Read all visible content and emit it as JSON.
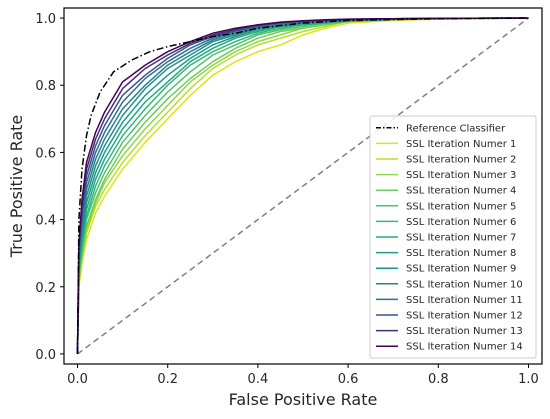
{
  "chart_data": {
    "type": "line",
    "title": "",
    "xlabel": "False Positive Rate",
    "ylabel": "True Positive Rate",
    "xlim": [
      -0.03,
      1.03
    ],
    "ylim": [
      -0.03,
      1.03
    ],
    "xticks": [
      "0.0",
      "0.2",
      "0.4",
      "0.6",
      "0.8",
      "1.0"
    ],
    "yticks": [
      "0.0",
      "0.2",
      "0.4",
      "0.6",
      "0.8",
      "1.0"
    ],
    "grid": false,
    "legend_position": "lower-right",
    "diagonal": {
      "x": [
        0,
        1
      ],
      "y": [
        0,
        1
      ],
      "color": "#808080",
      "style": "dashed"
    },
    "series": [
      {
        "name": "Reference Classifier",
        "color": "#000000",
        "style": "dashdot",
        "x": [
          0,
          0.003,
          0.01,
          0.02,
          0.03,
          0.05,
          0.08,
          0.12,
          0.16,
          0.2,
          0.25,
          0.3,
          0.35,
          0.4,
          0.5,
          0.6,
          0.8,
          1.0
        ],
        "y": [
          0,
          0.4,
          0.55,
          0.65,
          0.71,
          0.78,
          0.84,
          0.875,
          0.9,
          0.915,
          0.93,
          0.945,
          0.955,
          0.97,
          0.985,
          0.993,
          0.998,
          1.0
        ]
      },
      {
        "name": "SSL Iteration Numer 1",
        "color": "#dfe318",
        "style": "solid",
        "x": [
          0,
          0.003,
          0.01,
          0.02,
          0.04,
          0.06,
          0.1,
          0.15,
          0.2,
          0.25,
          0.3,
          0.35,
          0.4,
          0.45,
          0.5,
          0.55,
          0.6,
          0.7,
          0.8,
          1.0
        ],
        "y": [
          0,
          0.2,
          0.27,
          0.34,
          0.42,
          0.47,
          0.55,
          0.63,
          0.7,
          0.77,
          0.83,
          0.87,
          0.9,
          0.92,
          0.95,
          0.97,
          0.985,
          0.993,
          0.997,
          1.0
        ]
      },
      {
        "name": "SSL Iteration Numer 2",
        "color": "#b5de2b",
        "style": "solid",
        "x": [
          0,
          0.003,
          0.01,
          0.02,
          0.04,
          0.06,
          0.1,
          0.15,
          0.2,
          0.25,
          0.3,
          0.35,
          0.4,
          0.45,
          0.5,
          0.55,
          0.6,
          0.7,
          0.8,
          1.0
        ],
        "y": [
          0,
          0.21,
          0.28,
          0.36,
          0.44,
          0.49,
          0.57,
          0.65,
          0.72,
          0.79,
          0.85,
          0.89,
          0.92,
          0.94,
          0.96,
          0.975,
          0.99,
          0.995,
          0.998,
          1.0
        ]
      },
      {
        "name": "SSL Iteration Numer 3",
        "color": "#8fd744",
        "style": "solid",
        "x": [
          0,
          0.003,
          0.01,
          0.02,
          0.04,
          0.06,
          0.1,
          0.15,
          0.2,
          0.25,
          0.3,
          0.35,
          0.4,
          0.45,
          0.5,
          0.55,
          0.6,
          0.7,
          0.8,
          1.0
        ],
        "y": [
          0,
          0.22,
          0.29,
          0.37,
          0.45,
          0.51,
          0.59,
          0.67,
          0.74,
          0.81,
          0.86,
          0.9,
          0.93,
          0.95,
          0.97,
          0.98,
          0.99,
          0.995,
          0.998,
          1.0
        ]
      },
      {
        "name": "SSL Iteration Numer 4",
        "color": "#6ccd5a",
        "style": "solid",
        "x": [
          0,
          0.003,
          0.01,
          0.02,
          0.04,
          0.06,
          0.1,
          0.15,
          0.2,
          0.25,
          0.3,
          0.35,
          0.4,
          0.45,
          0.5,
          0.55,
          0.6,
          0.7,
          0.8,
          1.0
        ],
        "y": [
          0,
          0.23,
          0.3,
          0.38,
          0.46,
          0.52,
          0.61,
          0.69,
          0.76,
          0.82,
          0.87,
          0.91,
          0.94,
          0.96,
          0.97,
          0.98,
          0.99,
          0.996,
          0.999,
          1.0
        ]
      },
      {
        "name": "SSL Iteration Numer 5",
        "color": "#4ec36b",
        "style": "solid",
        "x": [
          0,
          0.003,
          0.01,
          0.02,
          0.04,
          0.06,
          0.1,
          0.15,
          0.2,
          0.25,
          0.3,
          0.35,
          0.4,
          0.45,
          0.5,
          0.55,
          0.6,
          0.7,
          0.8,
          1.0
        ],
        "y": [
          0,
          0.24,
          0.31,
          0.4,
          0.48,
          0.54,
          0.63,
          0.71,
          0.78,
          0.84,
          0.89,
          0.92,
          0.95,
          0.965,
          0.975,
          0.985,
          0.99,
          0.996,
          0.999,
          1.0
        ]
      },
      {
        "name": "SSL Iteration Numer 6",
        "color": "#35b779",
        "style": "solid",
        "x": [
          0,
          0.003,
          0.01,
          0.02,
          0.04,
          0.06,
          0.1,
          0.15,
          0.2,
          0.25,
          0.3,
          0.35,
          0.4,
          0.45,
          0.5,
          0.55,
          0.6,
          0.7,
          0.8,
          1.0
        ],
        "y": [
          0,
          0.25,
          0.32,
          0.41,
          0.5,
          0.56,
          0.65,
          0.73,
          0.8,
          0.86,
          0.9,
          0.93,
          0.955,
          0.97,
          0.98,
          0.985,
          0.99,
          0.996,
          0.999,
          1.0
        ]
      },
      {
        "name": "SSL Iteration Numer 7",
        "color": "#22a884",
        "style": "solid",
        "x": [
          0,
          0.003,
          0.01,
          0.02,
          0.04,
          0.06,
          0.1,
          0.15,
          0.2,
          0.25,
          0.3,
          0.35,
          0.4,
          0.45,
          0.5,
          0.55,
          0.6,
          0.7,
          0.8,
          1.0
        ],
        "y": [
          0,
          0.26,
          0.34,
          0.43,
          0.52,
          0.58,
          0.67,
          0.75,
          0.81,
          0.87,
          0.91,
          0.94,
          0.96,
          0.975,
          0.98,
          0.987,
          0.992,
          0.997,
          0.999,
          1.0
        ]
      },
      {
        "name": "SSL Iteration Numer 8",
        "color": "#1f9a8a",
        "style": "solid",
        "x": [
          0,
          0.003,
          0.01,
          0.02,
          0.04,
          0.06,
          0.1,
          0.15,
          0.2,
          0.25,
          0.3,
          0.35,
          0.4,
          0.45,
          0.5,
          0.55,
          0.6,
          0.7,
          0.8,
          1.0
        ],
        "y": [
          0,
          0.27,
          0.35,
          0.45,
          0.54,
          0.6,
          0.69,
          0.77,
          0.83,
          0.88,
          0.92,
          0.945,
          0.965,
          0.978,
          0.985,
          0.99,
          0.993,
          0.997,
          0.999,
          1.0
        ]
      },
      {
        "name": "SSL Iteration Numer 9",
        "color": "#21918c",
        "style": "solid",
        "x": [
          0,
          0.003,
          0.01,
          0.02,
          0.04,
          0.06,
          0.1,
          0.15,
          0.2,
          0.25,
          0.3,
          0.35,
          0.4,
          0.45,
          0.5,
          0.55,
          0.6,
          0.7,
          0.8,
          1.0
        ],
        "y": [
          0,
          0.28,
          0.37,
          0.47,
          0.56,
          0.62,
          0.71,
          0.79,
          0.85,
          0.89,
          0.93,
          0.95,
          0.97,
          0.98,
          0.986,
          0.99,
          0.994,
          0.997,
          0.999,
          1.0
        ]
      },
      {
        "name": "SSL Iteration Numer 10",
        "color": "#26828e",
        "style": "solid",
        "x": [
          0,
          0.003,
          0.01,
          0.02,
          0.04,
          0.06,
          0.1,
          0.15,
          0.2,
          0.25,
          0.3,
          0.35,
          0.4,
          0.45,
          0.5,
          0.55,
          0.6,
          0.7,
          0.8,
          1.0
        ],
        "y": [
          0,
          0.29,
          0.38,
          0.49,
          0.58,
          0.64,
          0.73,
          0.8,
          0.86,
          0.9,
          0.935,
          0.955,
          0.972,
          0.982,
          0.988,
          0.992,
          0.995,
          0.998,
          0.999,
          1.0
        ]
      },
      {
        "name": "SSL Iteration Numer 11",
        "color": "#2c728e",
        "style": "solid",
        "x": [
          0,
          0.003,
          0.01,
          0.02,
          0.04,
          0.06,
          0.1,
          0.15,
          0.2,
          0.25,
          0.3,
          0.35,
          0.4,
          0.45,
          0.5,
          0.55,
          0.6,
          0.7,
          0.8,
          1.0
        ],
        "y": [
          0,
          0.3,
          0.4,
          0.51,
          0.6,
          0.66,
          0.75,
          0.82,
          0.87,
          0.91,
          0.94,
          0.96,
          0.975,
          0.984,
          0.99,
          0.993,
          0.995,
          0.998,
          0.999,
          1.0
        ]
      },
      {
        "name": "SSL Iteration Numer 12",
        "color": "#3b528b",
        "style": "solid",
        "x": [
          0,
          0.003,
          0.01,
          0.02,
          0.04,
          0.06,
          0.1,
          0.15,
          0.2,
          0.25,
          0.3,
          0.35,
          0.4,
          0.45,
          0.5,
          0.55,
          0.6,
          0.7,
          0.8,
          1.0
        ],
        "y": [
          0,
          0.31,
          0.42,
          0.53,
          0.62,
          0.68,
          0.77,
          0.83,
          0.88,
          0.92,
          0.945,
          0.963,
          0.977,
          0.986,
          0.99,
          0.994,
          0.996,
          0.998,
          0.999,
          1.0
        ]
      },
      {
        "name": "SSL Iteration Numer 13",
        "color": "#472d7b",
        "style": "solid",
        "x": [
          0,
          0.003,
          0.01,
          0.02,
          0.04,
          0.06,
          0.1,
          0.15,
          0.2,
          0.25,
          0.3,
          0.35,
          0.4,
          0.45,
          0.5,
          0.55,
          0.6,
          0.7,
          0.8,
          1.0
        ],
        "y": [
          0,
          0.32,
          0.44,
          0.55,
          0.64,
          0.7,
          0.79,
          0.85,
          0.89,
          0.925,
          0.95,
          0.966,
          0.979,
          0.987,
          0.991,
          0.994,
          0.996,
          0.998,
          0.999,
          1.0
        ]
      },
      {
        "name": "SSL Iteration Numer 14",
        "color": "#440154",
        "style": "solid",
        "x": [
          0,
          0.003,
          0.01,
          0.02,
          0.04,
          0.06,
          0.1,
          0.15,
          0.2,
          0.25,
          0.3,
          0.35,
          0.4,
          0.45,
          0.5,
          0.55,
          0.6,
          0.7,
          0.8,
          1.0
        ],
        "y": [
          0,
          0.33,
          0.46,
          0.57,
          0.66,
          0.72,
          0.81,
          0.86,
          0.9,
          0.93,
          0.955,
          0.97,
          0.98,
          0.988,
          0.992,
          0.995,
          0.997,
          0.998,
          0.999,
          1.0
        ]
      }
    ]
  }
}
